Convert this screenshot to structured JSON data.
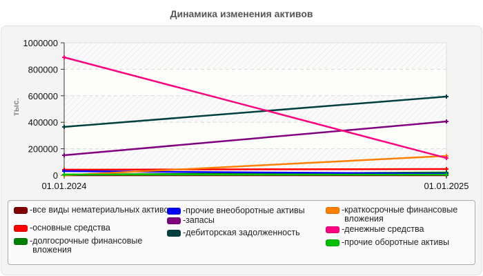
{
  "title": "Динамика изменения активов",
  "chart_data": {
    "type": "line",
    "title": "Динамика изменения активов",
    "xlabel": "",
    "ylabel": "тыс.",
    "x": [
      "01.01.2024",
      "01.01.2025"
    ],
    "ylim": [
      0,
      1000000
    ],
    "yticks": [
      "0",
      "200000",
      "400000",
      "600000",
      "800000",
      "1000000"
    ],
    "grid": true,
    "legend_position": "bottom",
    "series": [
      {
        "name": "все виды нематериальных активов",
        "color": "#800000",
        "values": [
          0,
          0
        ]
      },
      {
        "name": "основные средства",
        "color": "#ff0000",
        "values": [
          42000,
          47000
        ]
      },
      {
        "name": "долгосрочные финансовые вложения",
        "color": "#008000",
        "values": [
          5000,
          21000
        ]
      },
      {
        "name": "прочие внеоборотные активы",
        "color": "#0000ff",
        "values": [
          31000,
          12000
        ]
      },
      {
        "name": "запасы",
        "color": "#800080",
        "values": [
          151000,
          406000
        ]
      },
      {
        "name": "дебиторская задолженность",
        "color": "#004040",
        "values": [
          365000,
          594000
        ]
      },
      {
        "name": "краткосрочные финансовые вложения",
        "color": "#ff8000",
        "values": [
          0,
          146000
        ]
      },
      {
        "name": "денежные средства",
        "color": "#ff0080",
        "values": [
          890000,
          130000
        ]
      },
      {
        "name": "прочие оборотные активы",
        "color": "#00c000",
        "values": [
          5000,
          5000
        ]
      }
    ]
  },
  "legend": {
    "items": [
      {
        "label": "все виды нематериальных активов",
        "color": "#800000"
      },
      {
        "label": "основные средства",
        "color": "#ff0000"
      },
      {
        "label": "долгосрочные финансовые вложения",
        "color": "#008000"
      },
      {
        "label": "прочие внеоборотные активы",
        "color": "#0000ff"
      },
      {
        "label": "запасы",
        "color": "#800080"
      },
      {
        "label": "дебиторская задолженность",
        "color": "#004040"
      },
      {
        "label": "краткосрочные финансовые вложения",
        "color": "#ff8000"
      },
      {
        "label": "денежные средства",
        "color": "#ff0080"
      },
      {
        "label": "прочие оборотные активы",
        "color": "#00c000"
      }
    ]
  }
}
